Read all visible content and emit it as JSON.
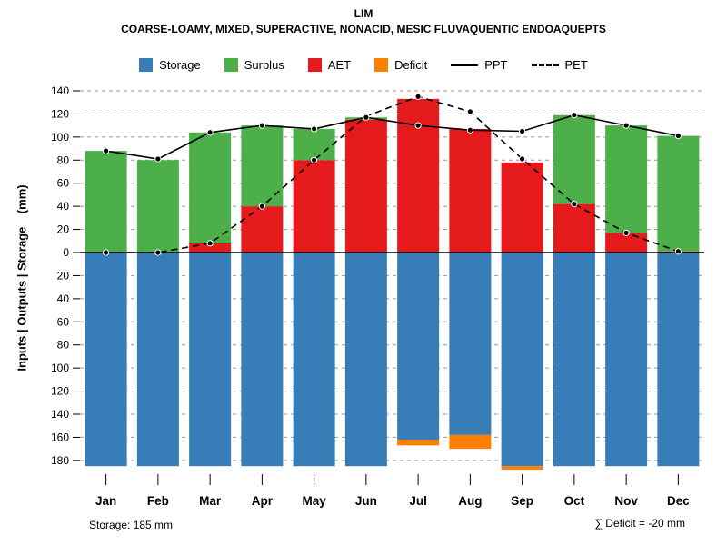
{
  "header": {
    "title": "LIM",
    "subtitle": "COARSE-LOAMY, MIXED, SUPERACTIVE, NONACID, MESIC FLUVAQUENTIC ENDOAQUEPTS"
  },
  "legend": {
    "storage_label": "Storage",
    "surplus_label": "Surplus",
    "aet_label": "AET",
    "deficit_label": "Deficit",
    "ppt_label": "PPT",
    "pet_label": "PET"
  },
  "ylabel": "Inputs | Outputs | Storage    (mm)",
  "footer": {
    "storage_note": "Storage: 185 mm",
    "deficit_note": "∑ Deficit = -20 mm"
  },
  "colors": {
    "storage": "#377EB8",
    "surplus": "#4DAF4A",
    "aet": "#E41A1C",
    "deficit": "#FF7F00",
    "line": "#000000",
    "grid": "#999999"
  },
  "chart_data": {
    "type": "bar",
    "title": "LIM",
    "subtitle": "COARSE-LOAMY, MIXED, SUPERACTIVE, NONACID, MESIC FLUVAQUENTIC ENDOAQUEPTS",
    "ylabel": "Inputs | Outputs | Storage (mm)",
    "units": "mm",
    "legend_position": "top",
    "grid": {
      "horizontal": true,
      "style": "dashed",
      "color": "#999999"
    },
    "categories": [
      "Jan",
      "Feb",
      "Mar",
      "Apr",
      "May",
      "Jun",
      "Jul",
      "Aug",
      "Sep",
      "Oct",
      "Nov",
      "Dec"
    ],
    "series": [
      {
        "name": "AET",
        "role": "bar-above",
        "stack_order": 0,
        "color": "#E41A1C",
        "values": [
          0,
          0,
          8,
          40,
          80,
          115,
          133,
          107,
          78,
          42,
          17,
          1
        ]
      },
      {
        "name": "Surplus",
        "role": "bar-above",
        "stack_order": 1,
        "color": "#4DAF4A",
        "values": [
          88,
          80,
          96,
          70,
          27,
          2,
          0,
          0,
          0,
          77,
          93,
          100
        ]
      },
      {
        "name": "Storage",
        "role": "bar-below",
        "stack_order": 0,
        "color": "#377EB8",
        "values": [
          185,
          185,
          185,
          185,
          185,
          185,
          162,
          158,
          185,
          185,
          185,
          185
        ]
      },
      {
        "name": "Deficit",
        "role": "bar-below",
        "stack_order": 1,
        "color": "#FF7F00",
        "values": [
          0,
          0,
          0,
          0,
          0,
          0,
          5,
          12,
          3,
          0,
          0,
          0
        ]
      },
      {
        "name": "PPT",
        "role": "line",
        "dash": "solid",
        "color": "#000000",
        "values": [
          88,
          81,
          104,
          110,
          107,
          117,
          110,
          106,
          105,
          119,
          110,
          101
        ]
      },
      {
        "name": "PET",
        "role": "line",
        "dash": "dashed",
        "color": "#000000",
        "values": [
          0,
          0,
          8,
          40,
          80,
          118,
          135,
          122,
          81,
          42,
          17,
          1
        ]
      }
    ],
    "y_axis": {
      "upper_max": 140,
      "lower_max": 185,
      "tick_step": 20,
      "tick_values": [
        140,
        120,
        100,
        80,
        60,
        40,
        20,
        0,
        -20,
        -40,
        -60,
        -80,
        -100,
        -120,
        -140,
        -160,
        -180
      ],
      "tick_labels": [
        "140",
        "120",
        "100",
        "80",
        "60",
        "40",
        "20",
        "0",
        "20",
        "40",
        "60",
        "80",
        "100",
        "120",
        "140",
        "160",
        "180"
      ]
    },
    "annotations": {
      "storage_capacity_mm": 185,
      "total_deficit_mm": -20
    }
  }
}
